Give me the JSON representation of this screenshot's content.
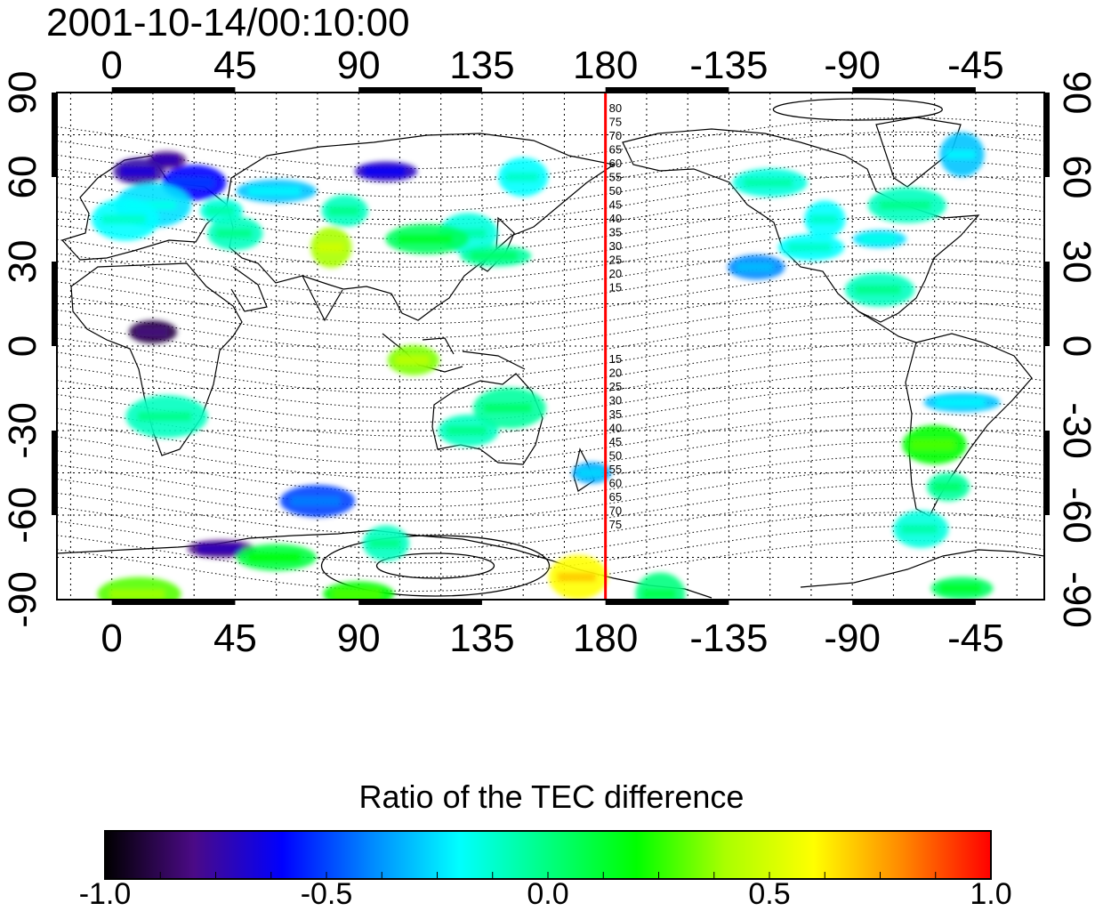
{
  "title": "2001-10-14/00:10:00",
  "top_axis": {
    "ticks": [
      "0",
      "45",
      "90",
      "135",
      "180",
      "-135",
      "-90",
      "-45"
    ]
  },
  "bottom_axis": {
    "ticks": [
      "0",
      "45",
      "90",
      "135",
      "180",
      "-135",
      "-90",
      "-45"
    ]
  },
  "left_axis": {
    "ticks": [
      "90",
      "60",
      "30",
      "0",
      "-30",
      "-60",
      "-90"
    ]
  },
  "right_axis": {
    "ticks": [
      "90",
      "60",
      "30",
      "0",
      "-30",
      "-60",
      "-90"
    ]
  },
  "lon_range": [
    -20,
    340
  ],
  "lat_range": [
    -90,
    90
  ],
  "meridian_line": {
    "lon": 180,
    "color": "#ff0000"
  },
  "contour_labels_north": [
    "80",
    "75",
    "70",
    "65",
    "60",
    "55",
    "50",
    "45",
    "40",
    "35",
    "30",
    "25",
    "20",
    "15"
  ],
  "contour_labels_south": [
    "15",
    "20",
    "25",
    "30",
    "35",
    "40",
    "45",
    "50",
    "55",
    "60",
    "65",
    "70",
    "75"
  ],
  "colorbar": {
    "title": "Ratio of the TEC difference",
    "range": [
      -1.0,
      1.0
    ],
    "tick_labels": [
      "-1.0",
      "-0.5",
      "0.0",
      "0.5",
      "1.0"
    ],
    "colors": [
      "#000000",
      "#4b0a86",
      "#0000ff",
      "#0088ff",
      "#00ffff",
      "#00ff80",
      "#00ff00",
      "#aaff00",
      "#ffff00",
      "#ff8800",
      "#ff0000"
    ]
  },
  "patches": [
    {
      "lon": 20,
      "lat": 66,
      "v": -0.8
    },
    {
      "lon": 10,
      "lat": 62,
      "v": -0.75
    },
    {
      "lon": 30,
      "lat": 58,
      "v": -0.6
    },
    {
      "lon": 15,
      "lat": 50,
      "v": -0.25
    },
    {
      "lon": 40,
      "lat": 48,
      "v": -0.15
    },
    {
      "lon": 45,
      "lat": 40,
      "v": -0.1
    },
    {
      "lon": 5,
      "lat": 45,
      "v": -0.2
    },
    {
      "lon": 60,
      "lat": 55,
      "v": -0.3
    },
    {
      "lon": 85,
      "lat": 48,
      "v": -0.1
    },
    {
      "lon": 130,
      "lat": 40,
      "v": -0.15
    },
    {
      "lon": 140,
      "lat": 32,
      "v": -0.05
    },
    {
      "lon": 115,
      "lat": 38,
      "v": 0.05
    },
    {
      "lon": 150,
      "lat": 60,
      "v": -0.2
    },
    {
      "lon": 100,
      "lat": 62,
      "v": -0.7
    },
    {
      "lon": 240,
      "lat": 58,
      "v": -0.15
    },
    {
      "lon": 260,
      "lat": 45,
      "v": -0.2
    },
    {
      "lon": 280,
      "lat": 38,
      "v": -0.25
    },
    {
      "lon": 255,
      "lat": 35,
      "v": -0.2
    },
    {
      "lon": 290,
      "lat": 50,
      "v": -0.1
    },
    {
      "lon": 310,
      "lat": 68,
      "v": -0.3
    },
    {
      "lon": 235,
      "lat": 28,
      "v": -0.4
    },
    {
      "lon": 280,
      "lat": 20,
      "v": -0.1
    },
    {
      "lon": 20,
      "lat": -25,
      "v": -0.1
    },
    {
      "lon": 15,
      "lat": 5,
      "v": -0.9
    },
    {
      "lon": 130,
      "lat": -30,
      "v": -0.1
    },
    {
      "lon": 145,
      "lat": -22,
      "v": -0.05
    },
    {
      "lon": 175,
      "lat": -45,
      "v": -0.35
    },
    {
      "lon": 110,
      "lat": -5,
      "v": 0.35
    },
    {
      "lon": 300,
      "lat": -35,
      "v": 0.2
    },
    {
      "lon": 310,
      "lat": -20,
      "v": -0.3
    },
    {
      "lon": 305,
      "lat": -50,
      "v": -0.05
    },
    {
      "lon": 295,
      "lat": -65,
      "v": -0.15
    },
    {
      "lon": 40,
      "lat": -72,
      "v": -0.8
    },
    {
      "lon": 60,
      "lat": -75,
      "v": 0.1
    },
    {
      "lon": 100,
      "lat": -70,
      "v": -0.1
    },
    {
      "lon": 170,
      "lat": -82,
      "v": 0.6
    },
    {
      "lon": 90,
      "lat": -88,
      "v": 0.2
    },
    {
      "lon": 10,
      "lat": -88,
      "v": 0.3
    },
    {
      "lon": 200,
      "lat": -88,
      "v": 0.0
    },
    {
      "lon": 310,
      "lat": -86,
      "v": 0.05
    },
    {
      "lon": 75,
      "lat": -55,
      "v": -0.5
    },
    {
      "lon": 80,
      "lat": 35,
      "v": 0.4
    }
  ]
}
